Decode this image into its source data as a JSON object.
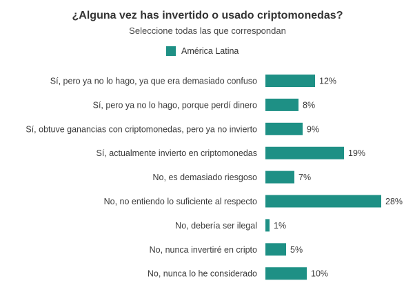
{
  "chart_data": {
    "type": "bar",
    "orientation": "horizontal",
    "title": "¿Alguna vez has invertido o usado criptomonedas?",
    "subtitle": "Seleccione todas las que correspondan",
    "xlabel": "",
    "ylabel": "",
    "xlim": [
      0,
      28
    ],
    "grid": false,
    "legend_position": "top-center",
    "categories": [
      "Sí, pero ya no lo hago, ya que era demasiado confuso",
      "Sí, pero ya no lo hago, porque perdí dinero",
      "Sí, obtuve ganancias con criptomonedas, pero ya no invierto",
      "Sí, actualmente invierto en criptomonedas",
      "No, es demasiado riesgoso",
      "No, no entiendo lo suficiente al respecto",
      "No, debería ser ilegal",
      "No, nunca invertiré en cripto",
      "No, nunca lo he considerado"
    ],
    "series": [
      {
        "name": "América Latina",
        "color": "#1e9085",
        "values": [
          12,
          8,
          9,
          19,
          7,
          28,
          1,
          5,
          10
        ],
        "labels": [
          "12%",
          "8%",
          "9%",
          "19%",
          "7%",
          "28%",
          "1%",
          "5%",
          "10%"
        ]
      }
    ]
  }
}
